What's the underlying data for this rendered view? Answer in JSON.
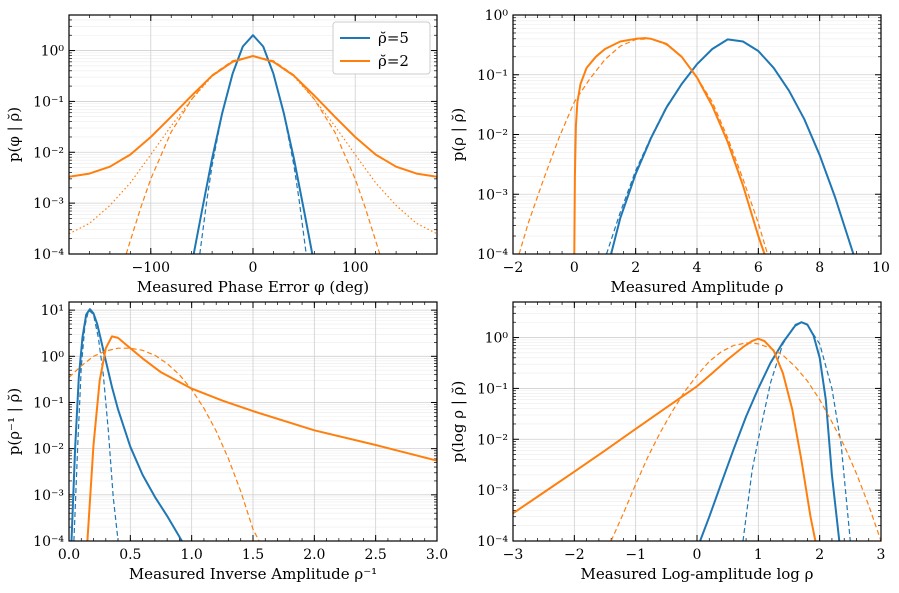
{
  "figure": {
    "legend": {
      "placement": "top-right of top-left panel",
      "entries": [
        {
          "label": "ρ̆=5",
          "color": "#1f77b4"
        },
        {
          "label": "ρ̆=2",
          "color": "#ff7f0e"
        }
      ]
    }
  },
  "chart_data": [
    {
      "type": "line",
      "panel": "top-left",
      "xlabel": "Measured Phase Error φ (deg)",
      "ylabel": "p(φ | ρ̆)",
      "xlim": [
        -180,
        180
      ],
      "ylim": [
        0.0001,
        5
      ],
      "yscale": "log",
      "grid": true,
      "xticks": [
        {
          "value": -100,
          "label": "−100"
        },
        {
          "value": 0,
          "label": "0"
        },
        {
          "value": 100,
          "label": "100"
        }
      ],
      "yticks": [
        {
          "value": 0.0001,
          "label": "10⁻⁴"
        },
        {
          "value": 0.001,
          "label": "10⁻³"
        },
        {
          "value": 0.01,
          "label": "10⁻²"
        },
        {
          "value": 0.1,
          "label": "10⁻¹"
        },
        {
          "value": 1,
          "label": "10⁰"
        }
      ],
      "series": [
        {
          "name": "ρ̆=5 exact",
          "color": "#1f77b4",
          "style": "solid",
          "x": [
            -58,
            -50,
            -40,
            -30,
            -20,
            -10,
            0,
            10,
            20,
            30,
            40,
            50,
            58
          ],
          "y": [
            0.0001,
            0.0007,
            0.0075,
            0.06,
            0.35,
            1.2,
            2.0,
            1.2,
            0.35,
            0.06,
            0.0075,
            0.0007,
            0.0001
          ]
        },
        {
          "name": "ρ̆=5 approx",
          "color": "#1f77b4",
          "style": "dashed",
          "x": [
            -52,
            -45,
            -40,
            -30,
            -20,
            -10,
            0,
            10,
            20,
            30,
            40,
            45,
            52
          ],
          "y": [
            0.0001,
            0.0012,
            0.0055,
            0.06,
            0.35,
            1.2,
            2.0,
            1.2,
            0.35,
            0.06,
            0.0055,
            0.0012,
            0.0001
          ]
        },
        {
          "name": "ρ̆=2 exact",
          "color": "#ff7f0e",
          "style": "solid",
          "x": [
            -180,
            -160,
            -140,
            -120,
            -100,
            -80,
            -60,
            -40,
            -20,
            0,
            20,
            40,
            60,
            80,
            100,
            120,
            140,
            160,
            180
          ],
          "y": [
            0.0033,
            0.0038,
            0.0052,
            0.009,
            0.02,
            0.05,
            0.13,
            0.32,
            0.6,
            0.78,
            0.6,
            0.32,
            0.13,
            0.05,
            0.02,
            0.009,
            0.0052,
            0.0038,
            0.0033
          ]
        },
        {
          "name": "ρ̆=2 dotted",
          "color": "#ff7f0e",
          "style": "dotted",
          "x": [
            -180,
            -160,
            -140,
            -120,
            -100,
            -80,
            -60,
            -40,
            -20,
            0,
            20,
            40,
            60,
            80,
            100,
            120,
            140,
            160,
            180
          ],
          "y": [
            0.00025,
            0.0004,
            0.0009,
            0.0025,
            0.009,
            0.033,
            0.11,
            0.31,
            0.6,
            0.78,
            0.6,
            0.31,
            0.11,
            0.033,
            0.009,
            0.0025,
            0.0009,
            0.0004,
            0.00025
          ]
        },
        {
          "name": "ρ̆=2 approx",
          "color": "#ff7f0e",
          "style": "dashed",
          "x": [
            -124,
            -110,
            -100,
            -80,
            -60,
            -40,
            -20,
            0,
            20,
            40,
            60,
            80,
            100,
            110,
            124
          ],
          "y": [
            0.0001,
            0.0008,
            0.003,
            0.025,
            0.11,
            0.33,
            0.63,
            0.78,
            0.63,
            0.33,
            0.11,
            0.025,
            0.003,
            0.0008,
            0.0001
          ]
        }
      ]
    },
    {
      "type": "line",
      "panel": "top-right",
      "xlabel": "Measured Amplitude ρ",
      "ylabel": "p(ρ | ρ̆)",
      "xlim": [
        -2,
        10
      ],
      "ylim": [
        0.0001,
        1
      ],
      "yscale": "log",
      "grid": true,
      "xticks": [
        {
          "value": -2,
          "label": "−2"
        },
        {
          "value": 0,
          "label": "0"
        },
        {
          "value": 2,
          "label": "2"
        },
        {
          "value": 4,
          "label": "4"
        },
        {
          "value": 6,
          "label": "6"
        },
        {
          "value": 8,
          "label": "8"
        },
        {
          "value": 10,
          "label": "10"
        }
      ],
      "yticks": [
        {
          "value": 0.0001,
          "label": "10⁻⁴"
        },
        {
          "value": 0.001,
          "label": "10⁻³"
        },
        {
          "value": 0.01,
          "label": "10⁻²"
        },
        {
          "value": 0.1,
          "label": "10⁻¹"
        },
        {
          "value": 1,
          "label": "10⁰"
        }
      ],
      "series": [
        {
          "name": "ρ̆=5 exact",
          "color": "#1f77b4",
          "style": "solid",
          "x": [
            1.2,
            1.5,
            2,
            2.5,
            3,
            3.5,
            4,
            4.5,
            5,
            5.5,
            6,
            6.5,
            7,
            7.5,
            8,
            8.5,
            9.1
          ],
          "y": [
            0.0001,
            0.0004,
            0.0022,
            0.0087,
            0.028,
            0.07,
            0.15,
            0.27,
            0.39,
            0.36,
            0.25,
            0.13,
            0.054,
            0.018,
            0.0045,
            0.0009,
            0.0001
          ]
        },
        {
          "name": "ρ̆=5 approx",
          "color": "#1f77b4",
          "style": "dashed",
          "x": [
            1.05,
            1.5,
            2,
            2.5,
            3,
            3.5,
            4,
            4.5,
            5,
            5.5,
            6,
            6.5,
            7,
            7.5,
            8,
            8.5,
            9.1
          ],
          "y": [
            0.0001,
            0.0005,
            0.0025,
            0.009,
            0.029,
            0.071,
            0.15,
            0.27,
            0.39,
            0.36,
            0.25,
            0.13,
            0.054,
            0.018,
            0.0045,
            0.0009,
            0.0001
          ]
        },
        {
          "name": "ρ̆=2 exact",
          "color": "#ff7f0e",
          "style": "solid",
          "x": [
            0,
            0.02,
            0.05,
            0.1,
            0.2,
            0.4,
            0.7,
            1,
            1.5,
            2,
            2.3,
            2.5,
            3,
            3.5,
            4,
            4.5,
            5,
            5.5,
            6,
            6.2
          ],
          "y": [
            0.0001,
            0.002,
            0.014,
            0.035,
            0.07,
            0.13,
            0.2,
            0.27,
            0.36,
            0.4,
            0.41,
            0.4,
            0.33,
            0.2,
            0.09,
            0.03,
            0.0075,
            0.0014,
            0.0002,
            0.0001
          ]
        },
        {
          "name": "ρ̆=2 approx",
          "color": "#ff7f0e",
          "style": "dashed",
          "x": [
            -1.8,
            -1.5,
            -1,
            -0.5,
            0,
            0.5,
            1,
            1.5,
            2,
            2.5,
            3,
            3.5,
            4,
            4.5,
            5,
            5.5,
            6,
            6.3
          ],
          "y": [
            0.0001,
            0.00033,
            0.0018,
            0.0088,
            0.035,
            0.085,
            0.18,
            0.3,
            0.39,
            0.4,
            0.32,
            0.2,
            0.09,
            0.035,
            0.0088,
            0.0018,
            0.00033,
            0.0001
          ]
        }
      ]
    },
    {
      "type": "line",
      "panel": "bottom-left",
      "xlabel": "Measured Inverse Amplitude ρ⁻¹",
      "ylabel": "p(ρ⁻¹ | ρ̆)",
      "xlim": [
        0,
        3
      ],
      "ylim": [
        0.0001,
        15
      ],
      "yscale": "log",
      "grid": true,
      "xticks": [
        {
          "value": 0,
          "label": "0.0"
        },
        {
          "value": 0.5,
          "label": "0.5"
        },
        {
          "value": 1,
          "label": "1.0"
        },
        {
          "value": 1.5,
          "label": "1.5"
        },
        {
          "value": 2,
          "label": "2.0"
        },
        {
          "value": 2.5,
          "label": "2.5"
        },
        {
          "value": 3,
          "label": "3.0"
        }
      ],
      "yticks": [
        {
          "value": 0.0001,
          "label": "10⁻⁴"
        },
        {
          "value": 0.001,
          "label": "10⁻³"
        },
        {
          "value": 0.01,
          "label": "10⁻²"
        },
        {
          "value": 0.1,
          "label": "10⁻¹"
        },
        {
          "value": 1,
          "label": "10⁰"
        },
        {
          "value": 10,
          "label": "10¹"
        }
      ],
      "series": [
        {
          "name": "ρ̆=5 exact",
          "color": "#1f77b4",
          "style": "solid",
          "x": [
            0.02,
            0.05,
            0.08,
            0.11,
            0.14,
            0.17,
            0.2,
            0.23,
            0.26,
            0.3,
            0.35,
            0.4,
            0.5,
            0.6,
            0.7,
            0.8,
            0.92
          ],
          "y": [
            0.0001,
            0.01,
            0.35,
            2.6,
            8,
            10.5,
            8.5,
            5,
            2.3,
            0.8,
            0.22,
            0.07,
            0.011,
            0.0027,
            0.0009,
            0.00035,
            0.0001
          ]
        },
        {
          "name": "ρ̆=5 approx",
          "color": "#1f77b4",
          "style": "dashed",
          "x": [
            0.04,
            0.07,
            0.1,
            0.13,
            0.16,
            0.2,
            0.24,
            0.28,
            0.32,
            0.36,
            0.4
          ],
          "y": [
            0.0001,
            0.01,
            0.6,
            4.5,
            10,
            8,
            2.5,
            0.4,
            0.025,
            0.0009,
            0.0001
          ]
        },
        {
          "name": "ρ̆=2 exact",
          "color": "#ff7f0e",
          "style": "solid",
          "x": [
            0.15,
            0.2,
            0.25,
            0.3,
            0.35,
            0.4,
            0.5,
            0.6,
            0.75,
            1,
            1.25,
            1.5,
            2,
            2.5,
            3
          ],
          "y": [
            0.0001,
            0.012,
            0.3,
            1.5,
            2.7,
            2.5,
            1.5,
            0.9,
            0.45,
            0.2,
            0.11,
            0.065,
            0.025,
            0.012,
            0.0055
          ]
        },
        {
          "name": "ρ̆=2 approx",
          "color": "#ff7f0e",
          "style": "dashed",
          "x": [
            0,
            0.1,
            0.2,
            0.3,
            0.4,
            0.5,
            0.6,
            0.7,
            0.8,
            0.9,
            1,
            1.1,
            1.2,
            1.3,
            1.4,
            1.5,
            1.55
          ],
          "y": [
            0.35,
            0.62,
            1.0,
            1.3,
            1.5,
            1.5,
            1.35,
            1.05,
            0.7,
            0.4,
            0.19,
            0.075,
            0.024,
            0.006,
            0.0012,
            0.00018,
            0.0001
          ]
        }
      ]
    },
    {
      "type": "line",
      "panel": "bottom-right",
      "xlabel": "Measured Log-amplitude log ρ",
      "ylabel": "p(log ρ | ρ̆)",
      "xlim": [
        -3,
        3
      ],
      "ylim": [
        0.0001,
        5
      ],
      "yscale": "log",
      "grid": true,
      "xticks": [
        {
          "value": -3,
          "label": "−3"
        },
        {
          "value": -2,
          "label": "−2"
        },
        {
          "value": -1,
          "label": "−1"
        },
        {
          "value": 0,
          "label": "0"
        },
        {
          "value": 1,
          "label": "1"
        },
        {
          "value": 2,
          "label": "2"
        },
        {
          "value": 3,
          "label": "3"
        }
      ],
      "yticks": [
        {
          "value": 0.0001,
          "label": "10⁻⁴"
        },
        {
          "value": 0.001,
          "label": "10⁻³"
        },
        {
          "value": 0.01,
          "label": "10⁻²"
        },
        {
          "value": 0.1,
          "label": "10⁻¹"
        },
        {
          "value": 1,
          "label": "10⁰"
        }
      ],
      "series": [
        {
          "name": "ρ̆=5 exact",
          "color": "#1f77b4",
          "style": "solid",
          "x": [
            0.05,
            0.2,
            0.4,
            0.6,
            0.8,
            1.0,
            1.2,
            1.4,
            1.6,
            1.7,
            1.8,
            1.9,
            2.0,
            2.1,
            2.2,
            2.32
          ],
          "y": [
            0.0001,
            0.0003,
            0.0014,
            0.0065,
            0.028,
            0.1,
            0.32,
            0.8,
            1.7,
            2.0,
            1.8,
            1.1,
            0.4,
            0.06,
            0.002,
            0.0001
          ]
        },
        {
          "name": "ρ̆=5 approx",
          "color": "#1f77b4",
          "style": "dashed",
          "x": [
            0.75,
            0.9,
            1.0,
            1.2,
            1.4,
            1.6,
            1.7,
            1.8,
            2.0,
            2.2,
            2.35,
            2.5
          ],
          "y": [
            0.0001,
            0.0025,
            0.01,
            0.13,
            0.75,
            1.8,
            2.0,
            1.75,
            0.75,
            0.1,
            0.008,
            0.0001
          ]
        },
        {
          "name": "ρ̆=2 exact",
          "color": "#ff7f0e",
          "style": "solid",
          "x": [
            -3,
            -2.5,
            -2,
            -1.5,
            -1,
            -0.5,
            0,
            0.25,
            0.5,
            0.75,
            0.9,
            1.0,
            1.1,
            1.25,
            1.4,
            1.55,
            1.7,
            1.85,
            1.93
          ],
          "y": [
            0.00035,
            0.0009,
            0.0023,
            0.006,
            0.016,
            0.042,
            0.11,
            0.2,
            0.37,
            0.65,
            0.86,
            0.95,
            0.85,
            0.55,
            0.2,
            0.04,
            0.004,
            0.0003,
            0.0001
          ]
        },
        {
          "name": "ρ̆=2 approx",
          "color": "#ff7f0e",
          "style": "dashed",
          "x": [
            -1.4,
            -1.2,
            -1,
            -0.8,
            -0.6,
            -0.4,
            -0.2,
            0,
            0.2,
            0.4,
            0.6,
            0.8,
            0.9,
            1.0,
            1.2,
            1.4,
            1.6,
            1.8,
            2.0,
            2.2,
            2.4,
            2.6,
            2.8,
            3.0
          ],
          "y": [
            0.0001,
            0.00035,
            0.0013,
            0.0045,
            0.0135,
            0.036,
            0.087,
            0.18,
            0.34,
            0.53,
            0.7,
            0.78,
            0.78,
            0.75,
            0.62,
            0.45,
            0.27,
            0.14,
            0.06,
            0.022,
            0.0075,
            0.0021,
            0.0005,
            0.0001
          ]
        }
      ]
    }
  ]
}
